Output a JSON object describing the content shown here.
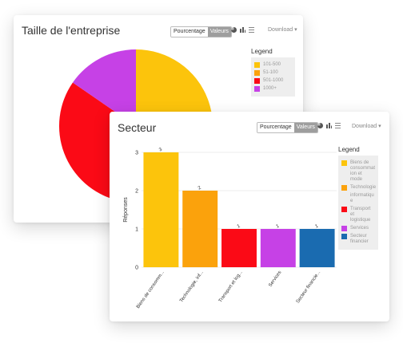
{
  "card1": {
    "title": "Taille de l'entreprise",
    "toggle": {
      "active": "Pourcentage",
      "inactive": "Valeurs"
    },
    "download": "Download ▾",
    "legend_title": "Legend"
  },
  "card2": {
    "title": "Secteur",
    "toggle": {
      "active": "Pourcentage",
      "inactive": "Valeurs"
    },
    "download": "Download ▾",
    "legend_title": "Legend"
  },
  "chart_data": [
    {
      "type": "pie",
      "title": "Taille de l'entreprise",
      "categories": [
        "101-500",
        "51-100",
        "501-1000",
        "1000+"
      ],
      "values": [
        5,
        2,
        4,
        2
      ],
      "colors": [
        "#fcc40c",
        "#fba20c",
        "#fb0a16",
        "#c641e6"
      ],
      "legend": "top-right"
    },
    {
      "type": "bar",
      "title": "Secteur",
      "categories": [
        "Biens de consomm...",
        "Technologie, inf...",
        "Transport et log...",
        "Services",
        "Secteur financie..."
      ],
      "values": [
        3,
        2,
        1,
        1,
        1
      ],
      "colors": [
        "#fcc40c",
        "#fba20c",
        "#fb0a16",
        "#c641e6",
        "#1a6bb0"
      ],
      "ylabel": "Réponses",
      "yticks": [
        0,
        1,
        2,
        3
      ],
      "ylim": [
        0,
        3
      ],
      "legend": "right",
      "legend_entries": [
        {
          "label": "Biens de consommat ion et mode",
          "color": "#fcc40c"
        },
        {
          "label": "Technologie",
          "color": "#fba20c"
        },
        {
          "label": "informatiqu e",
          "color": ""
        },
        {
          "label": "Transport et logistique",
          "color": "#fb0a16"
        },
        {
          "label": "Services",
          "color": "#c641e6"
        },
        {
          "label": "Secteur financier",
          "color": "#1a6bb0"
        }
      ]
    }
  ]
}
